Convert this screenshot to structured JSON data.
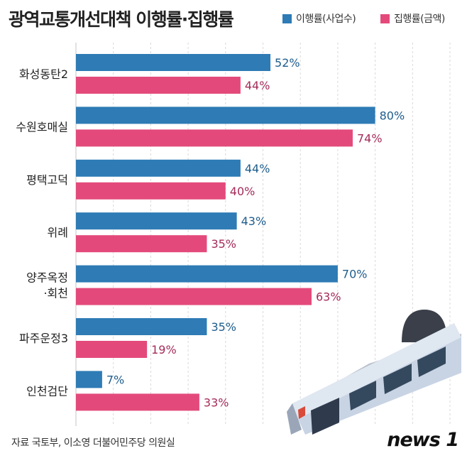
{
  "title": "광역교통개선대책 이행률·집행률",
  "source_text": "자료  국토부, 이소영 더불어민주당 의원실",
  "logo_text": "news 1",
  "colors": {
    "series1": "#2e7bb5",
    "series2": "#e34a7b",
    "label1": "#1f5d8c",
    "label2": "#a52c5a",
    "grid": "#d9d9d9",
    "category": "#222222"
  },
  "chart_data": {
    "type": "bar",
    "orientation": "horizontal",
    "categories": [
      [
        "화성동탄2"
      ],
      [
        "수원호매실"
      ],
      [
        "평택고덕"
      ],
      [
        "위례"
      ],
      [
        "양주옥정",
        "·회천"
      ],
      [
        "파주운정3"
      ],
      [
        "인천검단"
      ]
    ],
    "series": [
      {
        "name": "이행률(사업수)",
        "values": [
          52,
          80,
          44,
          43,
          70,
          35,
          7
        ],
        "labels": [
          "52%",
          "80%",
          "44%",
          "43%",
          "70%",
          "35%",
          "7%"
        ]
      },
      {
        "name": "집행률(금액)",
        "values": [
          44,
          74,
          40,
          35,
          63,
          19,
          33
        ],
        "labels": [
          "44%",
          "74%",
          "40%",
          "35%",
          "63%",
          "19%",
          "33%"
        ]
      }
    ],
    "xlim": [
      0,
      100
    ],
    "grid": true,
    "legend_position": "top-right"
  }
}
